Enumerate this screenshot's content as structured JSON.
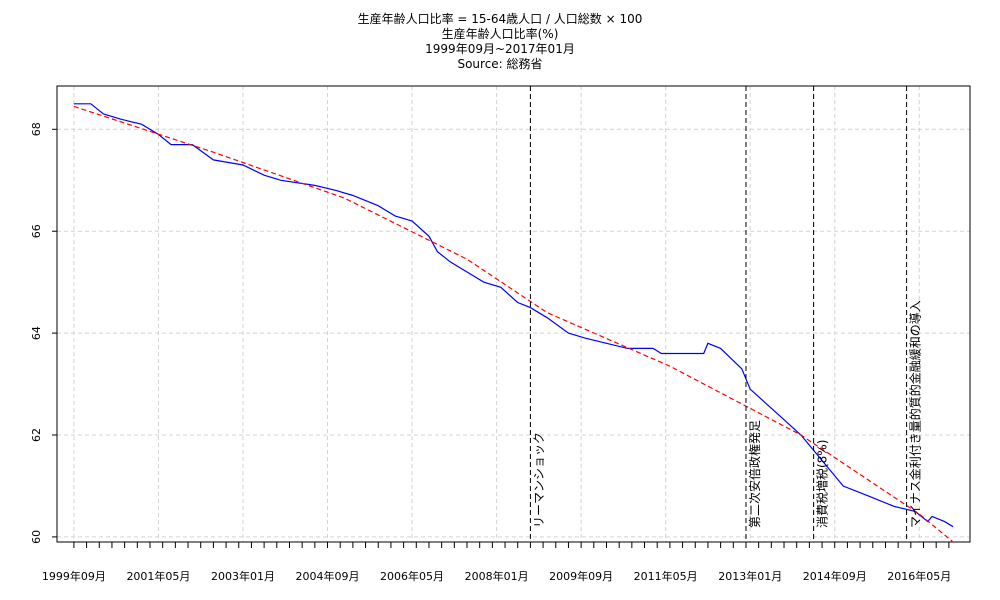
{
  "chart_data": {
    "type": "line",
    "title_lines": [
      "生産年齢人口比率 = 15-64歳人口 / 人口総数 × 100",
      "生産年齢人口比率(%)",
      "1999年09月~2017年01月",
      "Source: 総務省"
    ],
    "xlabel": "",
    "ylabel": "",
    "ylim": [
      59.9,
      68.85
    ],
    "xlim": [
      "1999-05",
      "2017-05"
    ],
    "y_ticks": [
      60,
      62,
      64,
      66,
      68
    ],
    "x_tick_labels": [
      {
        "date": "1999-09",
        "label": "1999年09月"
      },
      {
        "date": "2001-05",
        "label": "2001年05月"
      },
      {
        "date": "2003-01",
        "label": "2003年01月"
      },
      {
        "date": "2004-09",
        "label": "2004年09月"
      },
      {
        "date": "2006-05",
        "label": "2006年05月"
      },
      {
        "date": "2008-01",
        "label": "2008年01月"
      },
      {
        "date": "2009-09",
        "label": "2009年09月"
      },
      {
        "date": "2011-05",
        "label": "2011年05月"
      },
      {
        "date": "2013-01",
        "label": "2013年01月"
      },
      {
        "date": "2014-09",
        "label": "2014年09月"
      },
      {
        "date": "2016-05",
        "label": "2016年05月"
      }
    ],
    "grid": true,
    "series": [
      {
        "color": "#0000ff",
        "style": "solid",
        "points": [
          [
            "1999-09",
            68.5
          ],
          [
            "2000-01",
            68.5
          ],
          [
            "2000-04",
            68.3
          ],
          [
            "2000-08",
            68.2
          ],
          [
            "2001-01",
            68.1
          ],
          [
            "2001-05",
            67.9
          ],
          [
            "2001-08",
            67.7
          ],
          [
            "2002-01",
            67.7
          ],
          [
            "2002-06",
            67.4
          ],
          [
            "2003-01",
            67.3
          ],
          [
            "2003-06",
            67.1
          ],
          [
            "2003-10",
            67.0
          ],
          [
            "2004-06",
            66.9
          ],
          [
            "2004-11",
            66.8
          ],
          [
            "2005-03",
            66.7
          ],
          [
            "2005-09",
            66.5
          ],
          [
            "2006-01",
            66.3
          ],
          [
            "2006-05",
            66.2
          ],
          [
            "2006-09",
            65.9
          ],
          [
            "2006-11",
            65.6
          ],
          [
            "2007-02",
            65.4
          ],
          [
            "2007-06",
            65.2
          ],
          [
            "2007-10",
            65.0
          ],
          [
            "2008-02",
            64.9
          ],
          [
            "2008-06",
            64.6
          ],
          [
            "2008-09",
            64.5
          ],
          [
            "2009-01",
            64.3
          ],
          [
            "2009-06",
            64.0
          ],
          [
            "2009-10",
            63.9
          ],
          [
            "2010-03",
            63.8
          ],
          [
            "2010-08",
            63.7
          ],
          [
            "2011-02",
            63.7
          ],
          [
            "2011-04",
            63.6
          ],
          [
            "2011-10",
            63.6
          ],
          [
            "2012-02",
            63.6
          ],
          [
            "2012-03",
            63.8
          ],
          [
            "2012-06",
            63.7
          ],
          [
            "2012-11",
            63.3
          ],
          [
            "2013-01",
            62.9
          ],
          [
            "2013-05",
            62.6
          ],
          [
            "2013-09",
            62.3
          ],
          [
            "2014-01",
            62.0
          ],
          [
            "2014-04",
            61.7
          ],
          [
            "2014-07",
            61.4
          ],
          [
            "2014-11",
            61.0
          ],
          [
            "2015-05",
            60.8
          ],
          [
            "2015-11",
            60.6
          ],
          [
            "2016-04",
            60.5
          ],
          [
            "2016-07",
            60.3
          ],
          [
            "2016-08",
            60.4
          ],
          [
            "2016-11",
            60.3
          ],
          [
            "2017-01",
            60.2
          ]
        ]
      },
      {
        "color": "#ff0000",
        "style": "dashed",
        "points": [
          [
            "1999-09",
            68.45
          ],
          [
            "2002-06",
            67.55
          ],
          [
            "2005-01",
            66.65
          ],
          [
            "2007-06",
            65.45
          ],
          [
            "2009-01",
            64.4
          ],
          [
            "2011-06",
            63.35
          ],
          [
            "2014-01",
            62.0
          ],
          [
            "2016-05",
            60.45
          ],
          [
            "2017-01",
            59.9
          ]
        ]
      }
    ],
    "events": [
      {
        "date": "2008-09",
        "label": "リーマンショック"
      },
      {
        "date": "2012-12",
        "label": "第二次安倍政権発足"
      },
      {
        "date": "2014-04",
        "label": "消費税増税(8%)"
      },
      {
        "date": "2016-02",
        "label": "マイナス金利付き量的質的金融緩和の導入"
      }
    ]
  }
}
